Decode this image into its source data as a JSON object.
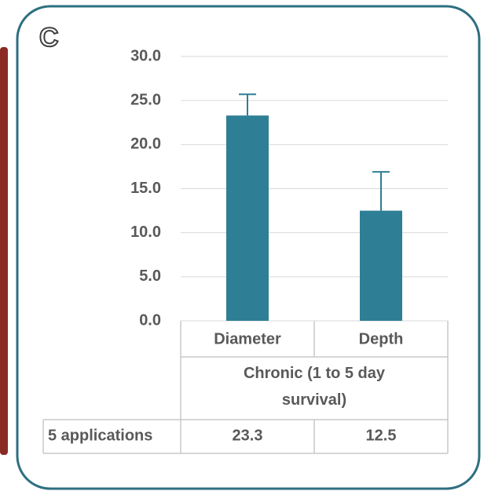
{
  "chart_data": {
    "type": "bar",
    "panel_label": "C",
    "categories": [
      "Diameter",
      "Depth"
    ],
    "group_label": "Chronic (1 to 5 day survival)",
    "series": [
      {
        "name": "5 applications",
        "color": "#2e7f95",
        "values": [
          23.3,
          12.5
        ],
        "errors": [
          2.4,
          4.4
        ]
      }
    ],
    "ylim": [
      0,
      30
    ],
    "yticks": [
      {
        "value": 0,
        "label": "0.0"
      },
      {
        "value": 5,
        "label": "5.0"
      },
      {
        "value": 10,
        "label": "10.0"
      },
      {
        "value": 15,
        "label": "15.0"
      },
      {
        "value": 20,
        "label": "20.0"
      },
      {
        "value": 25,
        "label": "25.0"
      },
      {
        "value": 30,
        "label": "30.0"
      }
    ],
    "grid": true,
    "data_table": true
  }
}
